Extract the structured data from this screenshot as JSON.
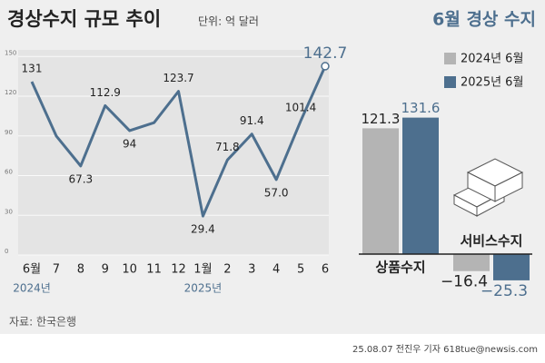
{
  "chart_data": [
    {
      "type": "line",
      "title": "경상수지 규모 추이",
      "subtitle": "단위: 억 달러",
      "categories": [
        "6월",
        "7",
        "8",
        "9",
        "10",
        "11",
        "12",
        "1월",
        "2",
        "3",
        "4",
        "5",
        "6"
      ],
      "sublabels": [
        "2024년",
        null,
        null,
        null,
        null,
        null,
        null,
        "2025년",
        null,
        null,
        null,
        null,
        null
      ],
      "values": [
        131,
        90,
        67.3,
        112.9,
        94,
        100,
        123.7,
        29.4,
        71.8,
        91.4,
        57.0,
        101.4,
        142.7
      ],
      "value_labels": [
        "131",
        null,
        "67.3",
        "112.9",
        "94",
        null,
        "123.7",
        "29.4",
        "71.8",
        "91.4",
        "57.0",
        "101.4",
        "142.7"
      ],
      "color": "#4d6f8e",
      "ylim": [
        0,
        155
      ],
      "yticks": [
        0,
        30,
        60,
        90,
        120,
        150
      ],
      "grid": true
    },
    {
      "type": "bar",
      "title": "6월 경상 수지",
      "categories": [
        "상품수지",
        "서비스수지"
      ],
      "series": [
        {
          "name": "2024년 6월",
          "color": "#b4b4b4",
          "values": [
            121.3,
            -16.4
          ],
          "value_labels": [
            "121.3",
            "−16.4"
          ]
        },
        {
          "name": "2025년 6월",
          "color": "#4d6f8e",
          "values": [
            131.6,
            -25.3
          ],
          "value_labels": [
            "131.6",
            "−25.3"
          ]
        }
      ],
      "ylim": [
        -35,
        140
      ]
    }
  ],
  "footer": {
    "source": "자료: 한국은행",
    "credit": "25.08.07 전진우 기자 618tue@newsis.com"
  }
}
